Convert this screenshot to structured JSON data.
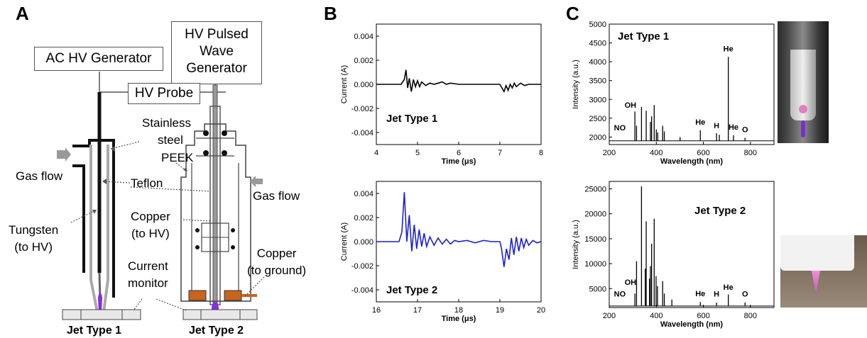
{
  "panels": {
    "a": "A",
    "b": "B",
    "c": "C"
  },
  "diagram": {
    "ac_generator": "AC HV Generator",
    "pulsed_generator": [
      "HV Pulsed",
      "Wave",
      "Generator"
    ],
    "hv_probe": "HV Probe",
    "stainless_steel": [
      "Stainless",
      "steel"
    ],
    "gas_flow_left": "Gas flow",
    "gas_flow_right": "Gas flow",
    "teflon": "Teflon",
    "peek": "PEEK",
    "tungsten": [
      "Tungsten",
      "(to HV)"
    ],
    "copper_hv": [
      "Copper",
      "(to HV)"
    ],
    "copper_ground": [
      "Copper",
      "(to ground)"
    ],
    "current_monitor": [
      "Current",
      "monitor"
    ],
    "jet1": "Jet Type 1",
    "jet2": "Jet Type 2"
  },
  "colors": {
    "plasma": "#8a2be2",
    "copper": "#c8641e",
    "trace1": "#000000",
    "trace2": "#1f1fd0"
  },
  "chart_data": [
    {
      "type": "line",
      "annotation": "Jet Type 1",
      "xlabel": "Time (μs)",
      "ylabel": "Current (A)",
      "xlim": [
        4,
        8
      ],
      "ylim": [
        -0.005,
        0.005
      ],
      "xticks": [
        "4",
        "5",
        "6",
        "7",
        "8"
      ],
      "yticks": [
        "0.004",
        "0.002",
        "0.000",
        "-0.002",
        "-0.004"
      ],
      "series": [
        {
          "x": [
            4.0,
            4.6,
            4.68,
            4.72,
            4.76,
            4.8,
            4.85,
            4.9,
            4.95,
            5.0,
            5.05,
            5.1,
            5.2,
            5.3,
            5.4,
            5.5,
            5.6,
            5.7,
            5.8,
            6.0,
            6.5,
            7.0,
            7.05,
            7.1,
            7.15,
            7.2,
            7.25,
            7.3,
            7.35,
            7.4,
            7.5,
            7.6,
            7.7,
            8.0
          ],
          "y": [
            0.0,
            0.0,
            0.0004,
            0.0012,
            -0.0003,
            0.0005,
            -0.0006,
            0.0004,
            -0.0002,
            0.0003,
            -0.0002,
            0.0002,
            -0.0001,
            0.0001,
            0.0,
            0.0001,
            0.0002,
            0.0,
            0.0001,
            0.0,
            0.0,
            0.0,
            -0.0003,
            -0.0006,
            -0.0001,
            -0.0005,
            0.0,
            -0.0003,
            0.0001,
            -0.0002,
            0.0001,
            -0.0001,
            0.0,
            0.0
          ]
        }
      ]
    },
    {
      "type": "line",
      "annotation": "Jet Type 2",
      "xlabel": "Time (μs)",
      "ylabel": "Current (A)",
      "xlim": [
        16,
        20
      ],
      "ylim": [
        -0.005,
        0.005
      ],
      "xticks": [
        "16",
        "17",
        "18",
        "19",
        "20"
      ],
      "yticks": [
        "0.004",
        "0.002",
        "0.000",
        "-0.002",
        "-0.004"
      ],
      "series": [
        {
          "x": [
            16.0,
            16.55,
            16.62,
            16.68,
            16.74,
            16.8,
            16.86,
            16.92,
            16.98,
            17.04,
            17.1,
            17.16,
            17.22,
            17.3,
            17.4,
            17.5,
            17.6,
            17.7,
            17.8,
            17.9,
            18.0,
            18.2,
            18.4,
            18.6,
            18.8,
            19.0,
            19.04,
            19.1,
            19.16,
            19.22,
            19.28,
            19.34,
            19.4,
            19.46,
            19.52,
            19.58,
            19.64,
            19.7,
            19.8,
            19.9,
            20.0
          ],
          "y": [
            0.0,
            0.0,
            0.0008,
            0.0041,
            0.0,
            0.0022,
            -0.0008,
            0.0014,
            -0.0006,
            0.001,
            -0.0004,
            0.0007,
            -0.0004,
            0.0004,
            -0.0003,
            0.0003,
            -0.0002,
            0.0002,
            -0.0002,
            0.0001,
            0.0,
            0.0001,
            -0.0001,
            0.0001,
            0.0,
            0.0,
            -0.0006,
            -0.0021,
            -0.0006,
            -0.0015,
            0.0003,
            -0.0011,
            0.0004,
            -0.0008,
            0.0003,
            -0.0005,
            0.0002,
            -0.0003,
            0.0001,
            -0.0001,
            0.0
          ]
        }
      ]
    },
    {
      "type": "line",
      "annotation": "Jet Type 1",
      "xlabel": "Wavelength (nm)",
      "ylabel": "Intensity (a.u.)",
      "xlim": [
        200,
        900
      ],
      "ylim": [
        1800,
        5000
      ],
      "xticks": [
        "200",
        "400",
        "600",
        "800"
      ],
      "yticks": [
        "5000",
        "4500",
        "4000",
        "3500",
        "3000",
        "2500",
        "2000"
      ],
      "baseline": 1900,
      "peaks": [
        {
          "x": 309,
          "y": 2680
        },
        {
          "x": 316,
          "y": 2300
        },
        {
          "x": 337,
          "y": 2800
        },
        {
          "x": 357,
          "y": 2700
        },
        {
          "x": 375,
          "y": 2400
        },
        {
          "x": 380,
          "y": 2550
        },
        {
          "x": 391,
          "y": 2850
        },
        {
          "x": 400,
          "y": 2200
        },
        {
          "x": 406,
          "y": 2120
        },
        {
          "x": 427,
          "y": 2300
        },
        {
          "x": 434,
          "y": 2150
        },
        {
          "x": 501,
          "y": 2000
        },
        {
          "x": 587,
          "y": 2180
        },
        {
          "x": 656,
          "y": 2100
        },
        {
          "x": 668,
          "y": 2060
        },
        {
          "x": 706,
          "y": 4130
        },
        {
          "x": 728,
          "y": 2050
        },
        {
          "x": 777,
          "y": 1980
        }
      ],
      "labels": [
        {
          "text": "He",
          "x": 706,
          "y": 4200
        },
        {
          "text": "He",
          "x": 587,
          "y": 2250
        },
        {
          "text": "H",
          "x": 656,
          "y": 2160
        },
        {
          "text": "He",
          "x": 728,
          "y": 2120
        },
        {
          "text": "O",
          "x": 777,
          "y": 2050
        },
        {
          "text": "NO",
          "x": 245,
          "y": 2100
        },
        {
          "text": "OH",
          "x": 290,
          "y": 2700
        }
      ]
    },
    {
      "type": "line",
      "annotation": "Jet Type 2",
      "xlabel": "Wavelength (nm)",
      "ylabel": "Intensity (a.u.)",
      "xlim": [
        200,
        900
      ],
      "ylim": [
        1200,
        26500
      ],
      "xticks": [
        "200",
        "400",
        "600",
        "800"
      ],
      "yticks": [
        "25000",
        "20000",
        "15000",
        "10000",
        "5000"
      ],
      "baseline": 1500,
      "peaks": [
        {
          "x": 309,
          "y": 4000
        },
        {
          "x": 316,
          "y": 10500
        },
        {
          "x": 337,
          "y": 25500
        },
        {
          "x": 353,
          "y": 9000
        },
        {
          "x": 357,
          "y": 18500
        },
        {
          "x": 371,
          "y": 7000
        },
        {
          "x": 375,
          "y": 9500
        },
        {
          "x": 380,
          "y": 14000
        },
        {
          "x": 391,
          "y": 19000
        },
        {
          "x": 399,
          "y": 7500
        },
        {
          "x": 405,
          "y": 5500
        },
        {
          "x": 427,
          "y": 6500
        },
        {
          "x": 434,
          "y": 4000
        },
        {
          "x": 466,
          "y": 2800
        },
        {
          "x": 587,
          "y": 2300
        },
        {
          "x": 656,
          "y": 2200
        },
        {
          "x": 706,
          "y": 3800
        },
        {
          "x": 777,
          "y": 2200
        }
      ],
      "labels": [
        {
          "text": "He",
          "x": 706,
          "y": 4200
        },
        {
          "text": "He",
          "x": 587,
          "y": 2900
        },
        {
          "text": "H",
          "x": 656,
          "y": 2800
        },
        {
          "text": "O",
          "x": 777,
          "y": 2800
        },
        {
          "text": "NO",
          "x": 245,
          "y": 2800
        },
        {
          "text": "OH",
          "x": 290,
          "y": 5200
        }
      ]
    }
  ]
}
